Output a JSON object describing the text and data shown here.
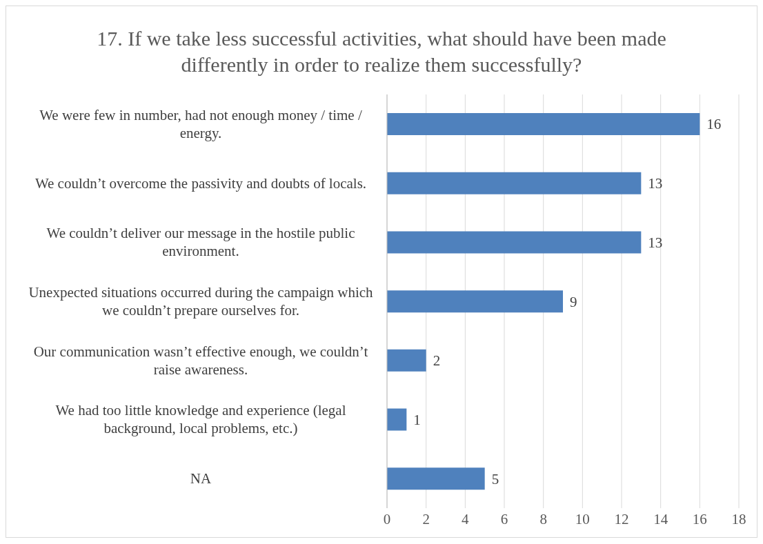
{
  "chart_data": {
    "type": "bar",
    "orientation": "horizontal",
    "title": "17. If we take less successful activities, what should have been made differently in order to realize them successfully?",
    "categories": [
      "We were few in number, had not enough money / time / energy.",
      "We couldn’t overcome the passivity and doubts of locals.",
      "We couldn’t deliver our message in the hostile public environment.",
      "Unexpected situations occurred during the campaign which we couldn’t prepare ourselves for.",
      "Our communication wasn’t effective enough, we couldn’t raise awareness.",
      "We had too little knowledge and experience (legal background, local problems, etc.)",
      "NA"
    ],
    "values": [
      16,
      13,
      13,
      9,
      2,
      1,
      5
    ],
    "color": "#4f81bd",
    "xlim": [
      0,
      18
    ],
    "xticks": [
      0,
      2,
      4,
      6,
      8,
      10,
      12,
      14,
      16,
      18
    ],
    "grid": "x",
    "data_labels": true
  }
}
